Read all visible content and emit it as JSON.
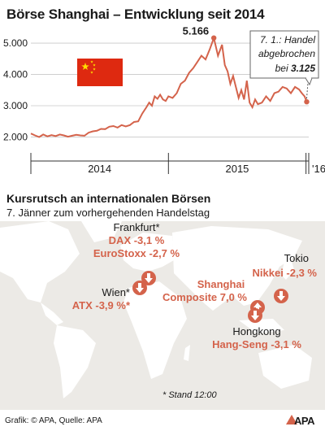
{
  "title": "Börse Shanghai – Entwicklung seit 2014",
  "chart_data": {
    "type": "line",
    "ylim": [
      1700,
      5600
    ],
    "yticks": [
      "2.000",
      "3.000",
      "4.000",
      "5.000"
    ],
    "ytick_values": [
      2000,
      3000,
      4000,
      5000
    ],
    "xticks": [
      "2014",
      "2015",
      "'16"
    ],
    "x_boundaries": [
      0,
      1,
      2,
      2.02
    ],
    "x": [
      0.0,
      0.03,
      0.06,
      0.09,
      0.12,
      0.15,
      0.18,
      0.21,
      0.24,
      0.27,
      0.3,
      0.33,
      0.36,
      0.39,
      0.42,
      0.45,
      0.48,
      0.51,
      0.54,
      0.57,
      0.6,
      0.63,
      0.66,
      0.69,
      0.72,
      0.75,
      0.78,
      0.81,
      0.84,
      0.86,
      0.88,
      0.9,
      0.92,
      0.94,
      0.96,
      0.98,
      1.0,
      1.03,
      1.06,
      1.09,
      1.12,
      1.15,
      1.18,
      1.21,
      1.24,
      1.27,
      1.3,
      1.33,
      1.36,
      1.39,
      1.41,
      1.43,
      1.45,
      1.47,
      1.49,
      1.51,
      1.53,
      1.55,
      1.57,
      1.59,
      1.61,
      1.63,
      1.65,
      1.68,
      1.71,
      1.74,
      1.77,
      1.8,
      1.83,
      1.86,
      1.89,
      1.92,
      1.95,
      1.97,
      1.99,
      2.005
    ],
    "values": [
      2110,
      2050,
      2000,
      2080,
      2020,
      2060,
      2030,
      2080,
      2050,
      2010,
      2040,
      2070,
      2050,
      2040,
      2140,
      2180,
      2200,
      2260,
      2250,
      2330,
      2350,
      2300,
      2380,
      2340,
      2380,
      2480,
      2500,
      2750,
      2950,
      3100,
      3000,
      3300,
      3220,
      3350,
      3200,
      3150,
      3300,
      3250,
      3400,
      3700,
      3800,
      4050,
      4200,
      4400,
      4600,
      4480,
      4800,
      5166,
      4600,
      4950,
      4300,
      4100,
      3700,
      3950,
      3600,
      3250,
      3500,
      3200,
      3800,
      3100,
      2950,
      3200,
      3050,
      3100,
      3300,
      3150,
      3400,
      3450,
      3600,
      3550,
      3400,
      3600,
      3520,
      3400,
      3300,
      3125
    ],
    "annotations": {
      "peak": {
        "label": "5.166",
        "x": 1.33,
        "value": 5166
      },
      "last": {
        "line1": "7. 1.: Handel",
        "line2": "abgebrochen",
        "line3_prefix": "bei ",
        "line3_value": "3.125",
        "x": 2.005,
        "value": 3125
      }
    },
    "colors": {
      "line": "#d4634b",
      "axis": "#333333",
      "grid": "#c8c8c8"
    }
  },
  "flag": {
    "name": "china-flag",
    "red": "#de2910",
    "yellow": "#ffde00"
  },
  "subtitle": "Kursrutsch an internationalen Börsen",
  "subsubtitle": "7. Jänner zum vorhergehenden Handelstag",
  "markets": {
    "frankfurt": {
      "city": "Frankfurt*",
      "l1": "DAX -3,1 %",
      "l2": "EuroStoxx -2,7 %"
    },
    "wien": {
      "city": "Wien*",
      "l1": "ATX -3,9 %*"
    },
    "shanghai": {
      "l1": "Shanghai",
      "l2": "Composite 7,0 %"
    },
    "tokio": {
      "city": "Tokio",
      "l1": "Nikkei -2,3 %"
    },
    "hongkong": {
      "city": "Hongkong",
      "l1": "Hang-Seng -3,1 %"
    }
  },
  "stand_note": "* Stand 12:00",
  "footer": "Grafik: © APA, Quelle: APA",
  "logo": "APA"
}
